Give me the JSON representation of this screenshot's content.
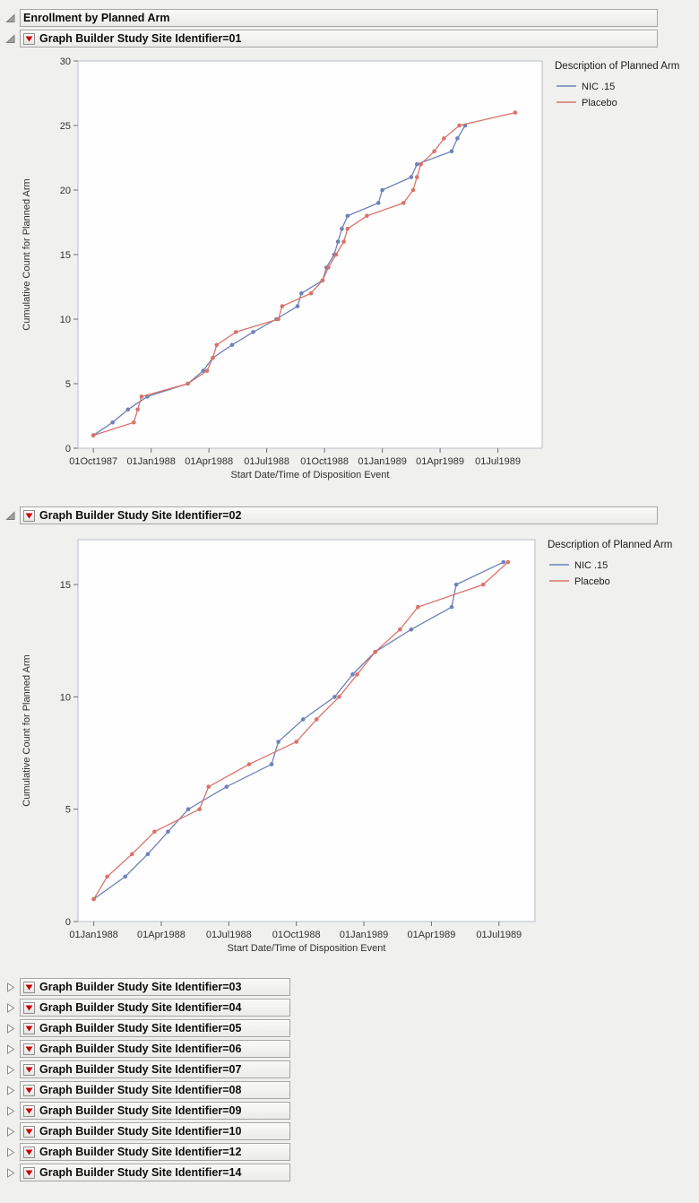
{
  "report": {
    "title": "Enrollment by Planned Arm"
  },
  "icons": {
    "disclosure_open": "triangle-pointing-down-right",
    "disclosure_closed": "triangle-pointing-right",
    "red_triangle_menu": "red-triangle-down"
  },
  "sections": [
    {
      "title": "Graph Builder Study Site Identifier=01",
      "state": "expanded",
      "chart": 0
    },
    {
      "title": "Graph Builder Study Site Identifier=02",
      "state": "expanded",
      "chart": 1
    },
    {
      "title": "Graph Builder Study Site Identifier=03",
      "state": "collapsed",
      "chart": null
    },
    {
      "title": "Graph Builder Study Site Identifier=04",
      "state": "collapsed",
      "chart": null
    },
    {
      "title": "Graph Builder Study Site Identifier=05",
      "state": "collapsed",
      "chart": null
    },
    {
      "title": "Graph Builder Study Site Identifier=06",
      "state": "collapsed",
      "chart": null
    },
    {
      "title": "Graph Builder Study Site Identifier=07",
      "state": "collapsed",
      "chart": null
    },
    {
      "title": "Graph Builder Study Site Identifier=08",
      "state": "collapsed",
      "chart": null
    },
    {
      "title": "Graph Builder Study Site Identifier=09",
      "state": "collapsed",
      "chart": null
    },
    {
      "title": "Graph Builder Study Site Identifier=10",
      "state": "collapsed",
      "chart": null
    },
    {
      "title": "Graph Builder Study Site Identifier=12",
      "state": "collapsed",
      "chart": null
    },
    {
      "title": "Graph Builder Study Site Identifier=14",
      "state": "collapsed",
      "chart": null
    }
  ],
  "chart_data": [
    {
      "type": "line",
      "site": "01",
      "xlabel": "Start Date/Time of Disposition Event",
      "ylabel": "Cumulative Count for Planned Arm",
      "legend_title": "Description of Planned Arm",
      "legend_position": "right",
      "grid": false,
      "x_unit": "months since 01Oct1987",
      "x_ticks": [
        0,
        3,
        6,
        9,
        12,
        15,
        18,
        21
      ],
      "x_tick_labels": [
        "01Oct1987",
        "01Jan1988",
        "01Apr1988",
        "01Jul1988",
        "01Oct1988",
        "01Jan1989",
        "01Apr1989",
        "01Jul1989"
      ],
      "xlim": [
        -0.8,
        23.3
      ],
      "ylim": [
        0,
        30
      ],
      "y_ticks": [
        0,
        5,
        10,
        15,
        20,
        25,
        30
      ],
      "series": [
        {
          "name": "NIC .15",
          "color": "#6E82B9",
          "x": [
            0,
            1.0,
            1.8,
            2.8,
            4.9,
            5.7,
            6.2,
            7.2,
            8.3,
            9.5,
            10.6,
            10.8,
            11.9,
            12.1,
            12.5,
            12.7,
            12.9,
            13.2,
            14.8,
            15.0,
            16.5,
            16.8,
            18.6,
            18.9,
            19.3
          ],
          "y": [
            1,
            2,
            3,
            4,
            5,
            6,
            7,
            8,
            9,
            10,
            11,
            12,
            13,
            14,
            15,
            16,
            17,
            18,
            19,
            20,
            21,
            22,
            23,
            24,
            25
          ]
        },
        {
          "name": "Placebo",
          "color": "#D97369",
          "x": [
            0,
            2.1,
            2.3,
            2.5,
            4.9,
            5.9,
            6.2,
            6.4,
            7.4,
            9.6,
            9.8,
            11.3,
            11.9,
            12.2,
            12.6,
            13.0,
            13.2,
            14.2,
            16.1,
            16.6,
            16.8,
            17.0,
            17.7,
            18.2,
            19.0,
            21.9
          ],
          "y": [
            1,
            2,
            3,
            4,
            5,
            6,
            7,
            8,
            9,
            10,
            11,
            12,
            13,
            14,
            15,
            16,
            17,
            18,
            19,
            20,
            21,
            22,
            23,
            24,
            25,
            26
          ]
        }
      ]
    },
    {
      "type": "line",
      "site": "02",
      "xlabel": "Start Date/Time of Disposition Event",
      "ylabel": "Cumulative Count for Planned Arm",
      "legend_title": "Description of Planned Arm",
      "legend_position": "right",
      "grid": false,
      "x_unit": "months since 01Jan1988",
      "x_ticks": [
        0,
        3,
        6,
        9,
        12,
        15,
        18
      ],
      "x_tick_labels": [
        "01Jan1988",
        "01Apr1988",
        "01Jul1988",
        "01Oct1988",
        "01Jan1989",
        "01Apr1989",
        "01Jul1989"
      ],
      "xlim": [
        -0.7,
        19.6
      ],
      "ylim": [
        0,
        17
      ],
      "y_ticks": [
        0,
        5,
        10,
        15
      ],
      "series": [
        {
          "name": "NIC .15",
          "color": "#6E82B9",
          "x": [
            0,
            1.4,
            2.4,
            3.3,
            4.2,
            5.9,
            7.9,
            8.2,
            9.3,
            10.7,
            11.5,
            12.5,
            14.1,
            15.9,
            16.1,
            18.2
          ],
          "y": [
            1,
            2,
            3,
            4,
            5,
            6,
            7,
            8,
            9,
            10,
            11,
            12,
            13,
            14,
            15,
            16
          ]
        },
        {
          "name": "Placebo",
          "color": "#D97369",
          "x": [
            0,
            0.6,
            1.7,
            2.7,
            4.7,
            5.1,
            6.9,
            9.0,
            9.9,
            10.9,
            11.7,
            12.5,
            13.6,
            14.4,
            17.3,
            18.4
          ],
          "y": [
            1,
            2,
            3,
            4,
            5,
            6,
            7,
            8,
            9,
            10,
            11,
            12,
            13,
            14,
            15,
            16
          ]
        }
      ]
    }
  ]
}
